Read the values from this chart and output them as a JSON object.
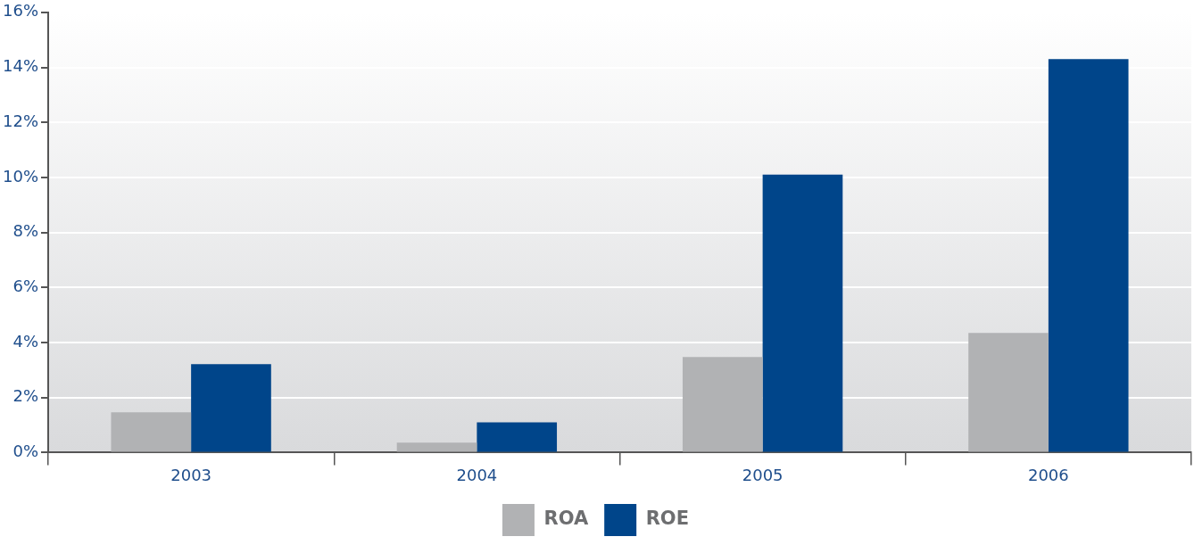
{
  "chart_data": {
    "type": "bar",
    "categories": [
      "2003",
      "2004",
      "2005",
      "2006"
    ],
    "series": [
      {
        "name": "ROA",
        "color": "#b1b2b4",
        "values": [
          1.46,
          0.36,
          3.47,
          4.35
        ]
      },
      {
        "name": "ROE",
        "color": "#00458a",
        "values": [
          3.21,
          1.1,
          10.1,
          14.3
        ]
      }
    ],
    "ylim": [
      0,
      16
    ],
    "yticks": [
      {
        "value": 0,
        "label": "0%"
      },
      {
        "value": 2,
        "label": "2%"
      },
      {
        "value": 4,
        "label": "4%"
      },
      {
        "value": 6,
        "label": "6%"
      },
      {
        "value": 8,
        "label": "8%"
      },
      {
        "value": 10,
        "label": "10%"
      },
      {
        "value": 12,
        "label": "12%"
      },
      {
        "value": 14,
        "label": "14%"
      },
      {
        "value": 16,
        "label": "16%"
      }
    ],
    "grid": "y",
    "legend": "bottom"
  }
}
